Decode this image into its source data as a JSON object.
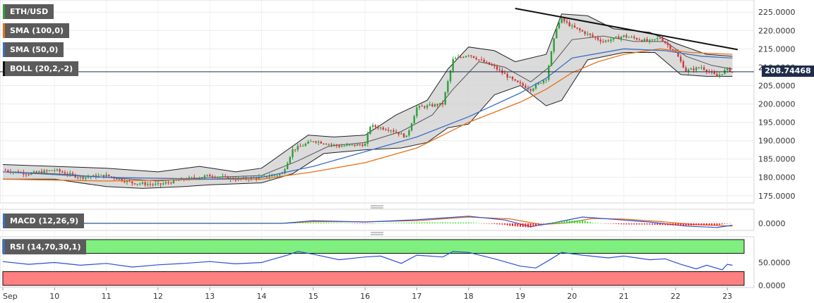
{
  "indicators": {
    "symbol": "ETH/USD",
    "sma100": "SMA (100,0)",
    "sma50": "SMA (50,0)",
    "boll": "BOLL (20,2,-2)",
    "macd": "MACD (12,26,9)",
    "rsi": "RSI (14,70,30,1)"
  },
  "last_price": "208.74468",
  "colors": {
    "sma100": "#e8701a",
    "sma50": "#3b6fc4",
    "boll_fill": "#cfcfcf",
    "candle_up": "#2f9e3c",
    "candle_down": "#cc3b3b",
    "rsi_overbought": "#7fef7f",
    "rsi_oversold": "#ff8080",
    "trendline": "#111111"
  },
  "chart_data": [
    {
      "type": "candlestick",
      "title": "ETH/USD",
      "yticks": [
        "225.0000",
        "220.0000",
        "215.0000",
        "210.0000",
        "205.0000",
        "200.0000",
        "195.0000",
        "190.0000",
        "185.0000",
        "180.0000",
        "175.0000"
      ],
      "ylim": [
        174,
        226
      ],
      "xticks": [
        "Sep",
        "10",
        "11",
        "12",
        "13",
        "14",
        "15",
        "16",
        "17",
        "18",
        "19",
        "20",
        "21",
        "22",
        "23"
      ],
      "x_days": [
        9,
        10,
        11,
        12,
        13,
        14,
        15,
        16,
        17,
        18,
        19,
        20,
        21,
        22,
        23
      ],
      "close": [
        [
          9.0,
          182.0
        ],
        [
          9.5,
          181.0
        ],
        [
          10.0,
          182.0
        ],
        [
          10.5,
          180.0
        ],
        [
          11.0,
          180.5
        ],
        [
          11.5,
          178.5
        ],
        [
          12.0,
          178.0
        ],
        [
          12.5,
          179.5
        ],
        [
          13.0,
          180.5
        ],
        [
          13.5,
          179.5
        ],
        [
          14.0,
          180.0
        ],
        [
          14.4,
          181.0
        ],
        [
          14.6,
          187.5
        ],
        [
          15.0,
          190.0
        ],
        [
          15.5,
          188.5
        ],
        [
          16.0,
          189.0
        ],
        [
          16.1,
          194.0
        ],
        [
          16.5,
          193.0
        ],
        [
          16.8,
          191.0
        ],
        [
          17.0,
          199.0
        ],
        [
          17.5,
          200.0
        ],
        [
          17.7,
          212.0
        ],
        [
          18.0,
          213.5
        ],
        [
          18.5,
          210.0
        ],
        [
          18.9,
          206.0
        ],
        [
          19.2,
          204.0
        ],
        [
          19.5,
          207.0
        ],
        [
          19.7,
          221.0
        ],
        [
          19.8,
          223.0
        ],
        [
          20.0,
          221.0
        ],
        [
          20.3,
          219.0
        ],
        [
          20.6,
          217.0
        ],
        [
          21.0,
          218.5
        ],
        [
          21.5,
          217.0
        ],
        [
          21.7,
          218.0
        ],
        [
          22.0,
          214.0
        ],
        [
          22.2,
          209.0
        ],
        [
          22.5,
          210.0
        ],
        [
          22.8,
          207.5
        ],
        [
          23.0,
          209.5
        ],
        [
          23.1,
          208.74
        ]
      ],
      "sma50": [
        [
          9.0,
          181.5
        ],
        [
          11.0,
          180.0
        ],
        [
          13.0,
          179.5
        ],
        [
          14.0,
          180.0
        ],
        [
          15.0,
          183.0
        ],
        [
          16.0,
          187.0
        ],
        [
          17.0,
          191.0
        ],
        [
          18.0,
          196.5
        ],
        [
          19.0,
          203.0
        ],
        [
          19.5,
          207.0
        ],
        [
          20.0,
          212.5
        ],
        [
          21.0,
          215.0
        ],
        [
          21.8,
          214.5
        ],
        [
          22.5,
          213.0
        ],
        [
          23.1,
          212.5
        ]
      ],
      "sma100": [
        [
          9.0,
          179.5
        ],
        [
          11.0,
          179.0
        ],
        [
          13.0,
          179.5
        ],
        [
          14.0,
          179.5
        ],
        [
          15.0,
          181.5
        ],
        [
          16.0,
          184.0
        ],
        [
          17.0,
          188.0
        ],
        [
          18.0,
          195.0
        ],
        [
          19.0,
          200.5
        ],
        [
          19.5,
          204.0
        ],
        [
          20.0,
          208.5
        ],
        [
          20.5,
          211.5
        ],
        [
          21.0,
          213.5
        ],
        [
          21.7,
          215.0
        ],
        [
          22.3,
          214.0
        ],
        [
          23.1,
          213.5
        ]
      ],
      "boll_mid": [
        [
          9.0,
          181.5
        ],
        [
          10.0,
          181.0
        ],
        [
          11.0,
          180.0
        ],
        [
          12.0,
          179.0
        ],
        [
          13.0,
          180.0
        ],
        [
          14.0,
          180.5
        ],
        [
          14.7,
          184.5
        ],
        [
          15.3,
          188.5
        ],
        [
          16.0,
          189.5
        ],
        [
          16.7,
          192.5
        ],
        [
          17.3,
          197.0
        ],
        [
          17.7,
          204.0
        ],
        [
          18.2,
          211.5
        ],
        [
          18.7,
          210.0
        ],
        [
          19.2,
          206.0
        ],
        [
          19.6,
          210.5
        ],
        [
          20.0,
          217.5
        ],
        [
          20.6,
          218.5
        ],
        [
          21.2,
          217.0
        ],
        [
          21.8,
          217.0
        ],
        [
          22.2,
          213.0
        ],
        [
          22.7,
          210.5
        ],
        [
          23.1,
          209.5
        ]
      ],
      "boll_upper": [
        [
          9.0,
          183.5
        ],
        [
          10.0,
          183.0
        ],
        [
          11.0,
          182.5
        ],
        [
          12.0,
          181.5
        ],
        [
          12.8,
          183.0
        ],
        [
          13.5,
          181.5
        ],
        [
          14.0,
          182.5
        ],
        [
          14.5,
          187.5
        ],
        [
          14.9,
          191.5
        ],
        [
          15.4,
          191.0
        ],
        [
          16.0,
          191.5
        ],
        [
          16.6,
          197.0
        ],
        [
          17.2,
          201.0
        ],
        [
          17.6,
          209.5
        ],
        [
          18.0,
          215.5
        ],
        [
          18.5,
          214.5
        ],
        [
          18.9,
          211.5
        ],
        [
          19.5,
          213.5
        ],
        [
          19.8,
          224.5
        ],
        [
          20.3,
          224.0
        ],
        [
          20.8,
          220.5
        ],
        [
          21.5,
          219.5
        ],
        [
          22.0,
          216.5
        ],
        [
          22.6,
          213.5
        ],
        [
          23.1,
          213.0
        ]
      ],
      "boll_lower": [
        [
          9.0,
          179.5
        ],
        [
          10.0,
          179.5
        ],
        [
          11.0,
          177.5
        ],
        [
          11.7,
          177.0
        ],
        [
          12.5,
          177.5
        ],
        [
          13.0,
          178.0
        ],
        [
          14.0,
          178.5
        ],
        [
          14.6,
          181.0
        ],
        [
          15.2,
          186.5
        ],
        [
          16.0,
          187.5
        ],
        [
          16.7,
          188.0
        ],
        [
          17.2,
          189.5
        ],
        [
          17.6,
          193.5
        ],
        [
          18.0,
          194.5
        ],
        [
          18.5,
          202.5
        ],
        [
          19.0,
          205.0
        ],
        [
          19.5,
          199.5
        ],
        [
          19.8,
          201.0
        ],
        [
          20.3,
          212.0
        ],
        [
          21.0,
          214.0
        ],
        [
          21.6,
          214.0
        ],
        [
          22.1,
          208.0
        ],
        [
          22.6,
          207.5
        ],
        [
          23.1,
          207.5
        ]
      ],
      "trendline": [
        [
          18.9,
          226.0
        ],
        [
          23.2,
          214.8
        ]
      ]
    },
    {
      "type": "line",
      "title": "MACD (12,26,9)",
      "yticks": [
        "0.0000"
      ],
      "macd": [
        [
          9.0,
          0.0
        ],
        [
          14.4,
          0.0
        ],
        [
          15.0,
          1.2
        ],
        [
          16.0,
          0.6
        ],
        [
          17.0,
          1.6
        ],
        [
          18.0,
          3.2
        ],
        [
          18.7,
          1.5
        ],
        [
          19.2,
          -1.5
        ],
        [
          19.7,
          0.5
        ],
        [
          20.2,
          2.8
        ],
        [
          20.8,
          1.8
        ],
        [
          21.5,
          0.6
        ],
        [
          22.2,
          -1.2
        ],
        [
          22.8,
          -1.8
        ],
        [
          23.1,
          -0.8
        ]
      ],
      "signal": [
        [
          9.0,
          0.0
        ],
        [
          14.4,
          0.0
        ],
        [
          15.0,
          0.8
        ],
        [
          16.0,
          0.7
        ],
        [
          17.0,
          1.2
        ],
        [
          18.0,
          2.8
        ],
        [
          18.8,
          2.0
        ],
        [
          19.4,
          -0.5
        ],
        [
          19.9,
          0.2
        ],
        [
          20.4,
          2.2
        ],
        [
          21.0,
          1.9
        ],
        [
          21.7,
          0.8
        ],
        [
          22.4,
          -0.6
        ],
        [
          23.1,
          -1.2
        ]
      ]
    },
    {
      "type": "line",
      "title": "RSI (14,70,30,1)",
      "yticks": [
        "50.0000",
        "0.0000"
      ],
      "ylim": [
        0,
        100
      ],
      "overbought": 70,
      "oversold": 30,
      "values": [
        [
          9.0,
          52
        ],
        [
          9.5,
          46
        ],
        [
          10.0,
          50
        ],
        [
          10.5,
          44
        ],
        [
          11.0,
          48
        ],
        [
          11.5,
          40
        ],
        [
          12.0,
          45
        ],
        [
          12.5,
          48
        ],
        [
          13.0,
          52
        ],
        [
          13.5,
          47
        ],
        [
          14.0,
          50
        ],
        [
          14.5,
          66
        ],
        [
          14.7,
          74
        ],
        [
          15.0,
          68
        ],
        [
          15.5,
          56
        ],
        [
          16.0,
          62
        ],
        [
          16.3,
          64
        ],
        [
          16.7,
          48
        ],
        [
          17.0,
          66
        ],
        [
          17.5,
          62
        ],
        [
          17.7,
          74
        ],
        [
          18.0,
          72
        ],
        [
          18.5,
          58
        ],
        [
          19.0,
          42
        ],
        [
          19.3,
          38
        ],
        [
          19.6,
          58
        ],
        [
          19.8,
          72
        ],
        [
          20.2,
          66
        ],
        [
          20.7,
          60
        ],
        [
          21.0,
          64
        ],
        [
          21.5,
          56
        ],
        [
          21.8,
          58
        ],
        [
          22.1,
          46
        ],
        [
          22.4,
          36
        ],
        [
          22.6,
          44
        ],
        [
          22.9,
          34
        ],
        [
          23.0,
          46
        ],
        [
          23.1,
          44
        ]
      ]
    }
  ]
}
